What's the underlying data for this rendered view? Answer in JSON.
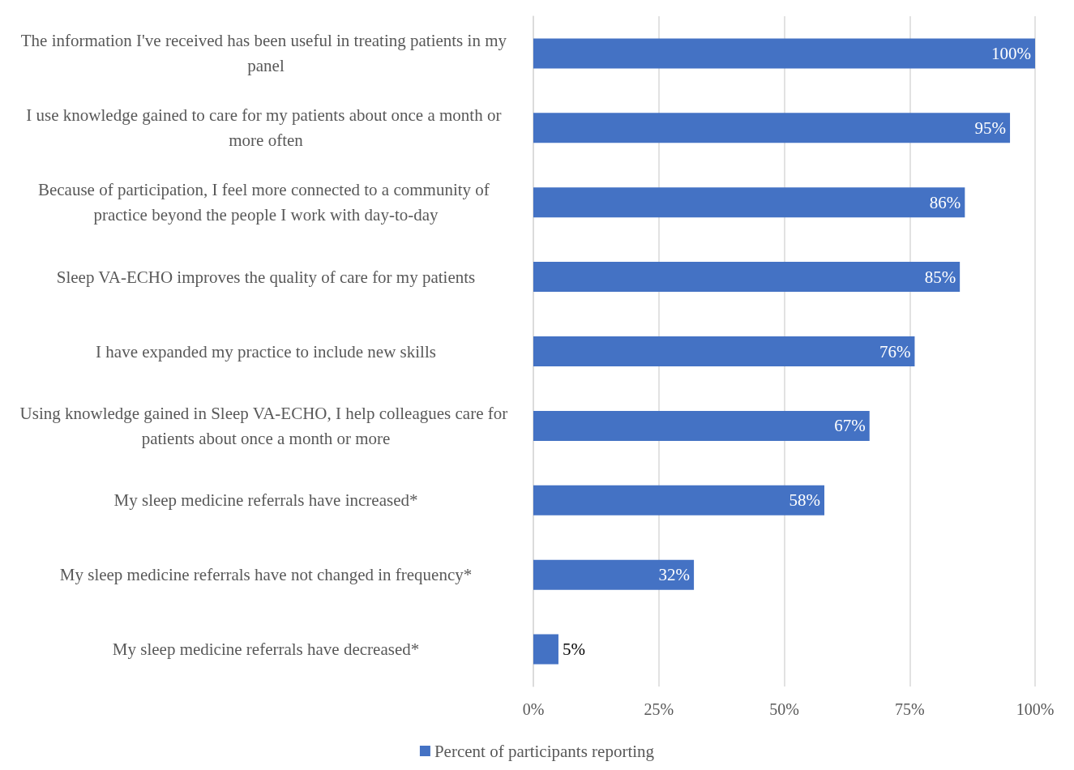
{
  "chart_data": {
    "type": "bar",
    "orientation": "horizontal",
    "categories": [
      "The information I've received has been useful in treating patients in my panel",
      "I use knowledge gained to care for my patients about once a month or more often",
      "Because of participation, I feel more connected to a community of practice beyond the people I work with day-to-day",
      "Sleep VA-ECHO improves the quality of care for my patients",
      "I have expanded my practice to include new skills",
      "Using knowledge gained in Sleep VA-ECHO, I help colleagues care for patients about once a month or more",
      "My sleep medicine referrals have increased*",
      "My sleep medicine referrals have not changed in frequency*",
      "My sleep medicine referrals have decreased*"
    ],
    "series": [
      {
        "name": "Percent of participants reporting",
        "color": "#4472c4",
        "values": [
          100,
          95,
          86,
          85,
          76,
          67,
          58,
          32,
          5
        ],
        "value_labels": [
          "100%",
          "95%",
          "86%",
          "85%",
          "76%",
          "67%",
          "58%",
          "32%",
          "5%"
        ]
      }
    ],
    "xlim": [
      0,
      100
    ],
    "xticks": [
      {
        "value": 0,
        "label": "0%"
      },
      {
        "value": 25,
        "label": "25%"
      },
      {
        "value": 50,
        "label": "50%"
      },
      {
        "value": 75,
        "label": "75%"
      },
      {
        "value": 100,
        "label": "100%"
      }
    ],
    "grid": "x",
    "legend": "bottom"
  }
}
